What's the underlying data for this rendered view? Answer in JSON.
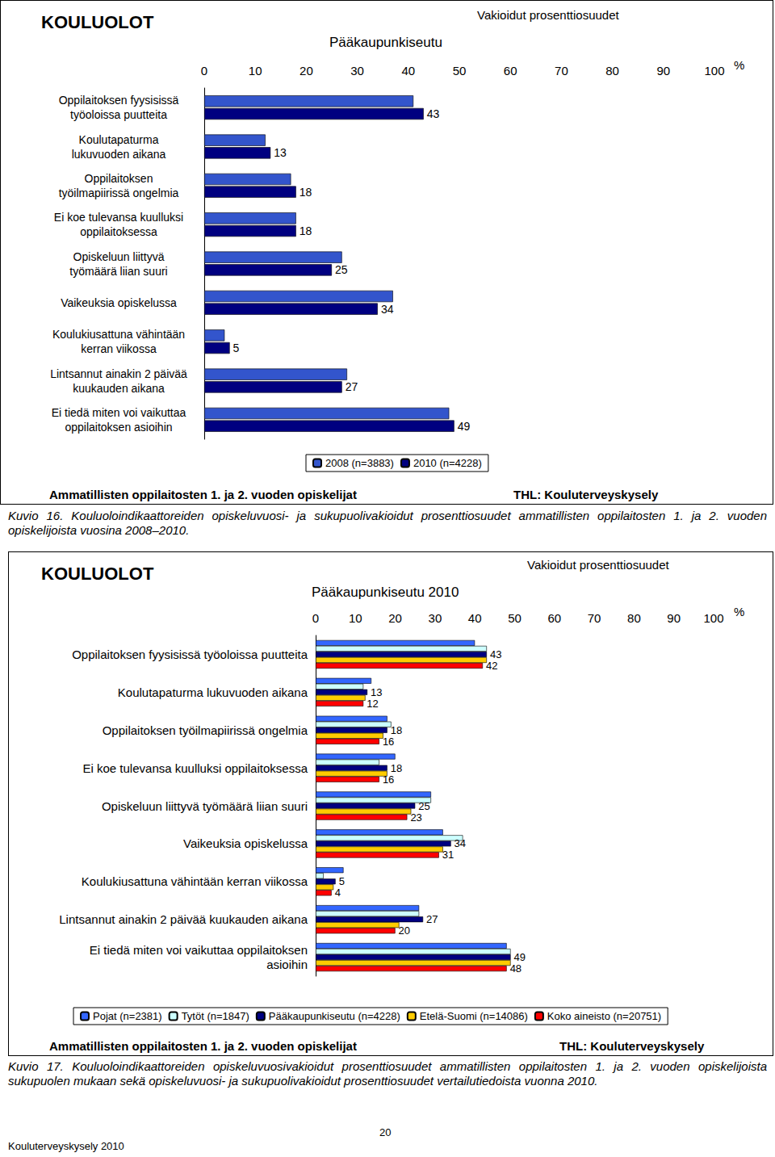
{
  "chart_data": [
    {
      "type": "bar",
      "orientation": "horizontal",
      "title": "KOULUOLOT",
      "subtitle": "Pääkaupunkiseutu",
      "annotations": [
        "Vakioidut prosenttiosuudet",
        "%",
        "Ammatillisten oppilaitosten 1. ja 2. vuoden opiskelijat",
        "THL: Kouluterveyskysely"
      ],
      "caption": "Kuvio 16. Kouluoloindikaattoreiden opiskeluvuosi- ja sukupuolivakioidut prosenttiosuudet ammatillisten oppilaitosten 1. ja 2. vuoden opiskelijoista vuosina 2008–2010.",
      "categories": [
        "Oppilaitoksen fyysisissä\ntyöoloissa puutteita",
        "Koulutapaturma\nlukuvuoden aikana",
        "Oppilaitoksen\ntyöilmapiirissä ongelmia",
        "Ei koe tulevansa kuulluksi\noppilaitoksessa",
        "Opiskeluun liittyvä\ntyömäärä liian suuri",
        "Vaikeuksia opiskelussa",
        "Koulukiusattuna vähintään\nkerran viikossa",
        "Lintsannut ainakin 2 päivää\nkuukauden aikana",
        "Ei tiedä miten voi vaikuttaa\noppilaitoksen asioihin"
      ],
      "series": [
        {
          "name": "2008 (n=3883)",
          "color": "#3355cc",
          "data_labels": false,
          "values": [
            41,
            12,
            17,
            18,
            27,
            37,
            4,
            28,
            48
          ]
        },
        {
          "name": "2010 (n=4228)",
          "color": "#000080",
          "data_labels": true,
          "values": [
            43,
            13,
            18,
            18,
            25,
            34,
            5,
            27,
            49
          ]
        }
      ],
      "xlim": [
        0,
        100
      ],
      "xticks": [
        0,
        10,
        20,
        30,
        40,
        50,
        60,
        70,
        80,
        90,
        100
      ],
      "grid": false,
      "legend": "bottom"
    },
    {
      "type": "bar",
      "orientation": "horizontal",
      "title": "KOULUOLOT",
      "subtitle": "Pääkaupunkiseutu 2010",
      "annotations": [
        "Vakioidut prosenttiosuudet",
        "%",
        "Ammatillisten oppilaitosten 1. ja 2. vuoden opiskelijat",
        "THL: Kouluterveyskysely"
      ],
      "caption": "Kuvio 17. Kouluoloindikaattoreiden opiskeluvuosivakioidut prosenttiosuudet ammatillisten oppilaitosten 1. ja 2. vuoden opiskelijoista sukupuolen mukaan sekä opiskeluvuosi- ja sukupuolivakioidut prosenttiosuudet vertailutiedoista vuonna 2010.",
      "categories": [
        "Oppilaitoksen fyysisissä työoloissa puutteita",
        "Koulutapaturma lukuvuoden aikana",
        "Oppilaitoksen työilmapiirissä ongelmia",
        "Ei koe tulevansa kuulluksi oppilaitoksessa",
        "Opiskeluun liittyvä työmäärä liian suuri",
        "Vaikeuksia opiskelussa",
        "Koulukiusattuna vähintään kerran viikossa",
        "Lintsannut ainakin 2 päivää kuukauden aikana",
        "Ei tiedä miten voi vaikuttaa oppilaitoksen\nasioihin"
      ],
      "series": [
        {
          "name": "Pojat (n=2381)",
          "color": "#3366ff",
          "data_labels": false,
          "values": [
            40,
            14,
            18,
            20,
            29,
            32,
            7,
            26,
            48
          ]
        },
        {
          "name": "Tytöt (n=1847)",
          "color": "#ccffff",
          "data_labels": false,
          "values": [
            43,
            12,
            19,
            16,
            29,
            37,
            2,
            26,
            49
          ]
        },
        {
          "name": "Pääkaupunkiseutu (n=4228)",
          "color": "#000080",
          "data_labels": true,
          "values": [
            43,
            13,
            18,
            18,
            25,
            34,
            5,
            27,
            49
          ]
        },
        {
          "name": "Etelä-Suomi (n=14086)",
          "color": "#ffcc00",
          "data_labels": false,
          "values": [
            43,
            12.5,
            17,
            18,
            24,
            32,
            4.5,
            21,
            49
          ]
        },
        {
          "name": "Koko aineisto (n=20751)",
          "color": "#ff0000",
          "data_labels": true,
          "values": [
            42,
            12,
            16,
            16,
            23,
            31,
            4,
            20,
            48
          ]
        }
      ],
      "xlim": [
        0,
        100
      ],
      "xticks": [
        0,
        10,
        20,
        30,
        40,
        50,
        60,
        70,
        80,
        90,
        100
      ],
      "grid": false,
      "legend": "bottom"
    }
  ],
  "page": {
    "footer": "Kouluterveyskysely 2010",
    "page_number": "20"
  }
}
